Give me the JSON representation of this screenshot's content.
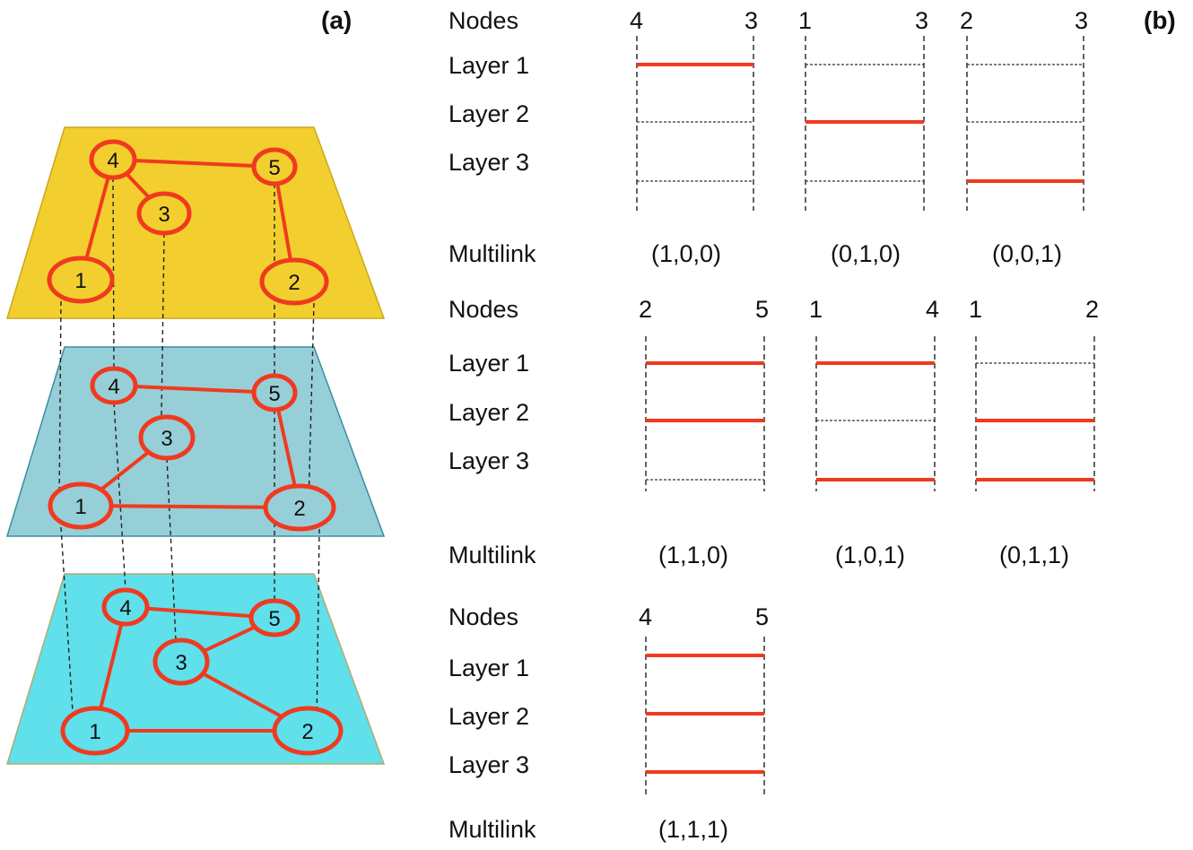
{
  "panel_a": {
    "label": "(a)",
    "layers": [
      {
        "fill": "#f2cf2e",
        "stroke": "#c9a91a"
      },
      {
        "fill": "#97cfd8",
        "stroke": "#3a8fa0"
      },
      {
        "fill": "#5fe0ea",
        "stroke": "#b7a96c"
      }
    ],
    "node_labels": [
      "1",
      "2",
      "3",
      "4",
      "5"
    ],
    "layer_edges": [
      [
        [
          "4",
          "5"
        ],
        [
          "4",
          "3"
        ],
        [
          "4",
          "1"
        ],
        [
          "5",
          "2"
        ]
      ],
      [
        [
          "4",
          "5"
        ],
        [
          "5",
          "2"
        ],
        [
          "1",
          "2"
        ],
        [
          "1",
          "3"
        ]
      ],
      [
        [
          "4",
          "5"
        ],
        [
          "4",
          "1"
        ],
        [
          "1",
          "2"
        ],
        [
          "3",
          "2"
        ],
        [
          "3",
          "5"
        ]
      ]
    ],
    "colors": {
      "edge": "#f03a1f",
      "node_fill_top": "#f2cf2e"
    }
  },
  "panel_b": {
    "label": "(b)",
    "nodes_label": "Nodes",
    "layer_labels": [
      "Layer 1",
      "Layer 2",
      "Layer 3"
    ],
    "multilink_label": "Multilink",
    "groups": [
      {
        "pairs": [
          {
            "nodes": [
              "4",
              "3"
            ],
            "vector": "(1,0,0)",
            "links": [
              1,
              0,
              0
            ]
          },
          {
            "nodes": [
              "1",
              "3"
            ],
            "vector": "(0,1,0)",
            "links": [
              0,
              1,
              0
            ]
          },
          {
            "nodes": [
              "2",
              "3"
            ],
            "vector": "(0,0,1)",
            "links": [
              0,
              0,
              1
            ]
          }
        ]
      },
      {
        "pairs": [
          {
            "nodes": [
              "2",
              "5"
            ],
            "vector": "(1,1,0)",
            "links": [
              1,
              1,
              0
            ]
          },
          {
            "nodes": [
              "1",
              "4"
            ],
            "vector": "(1,0,1)",
            "links": [
              1,
              0,
              1
            ]
          },
          {
            "nodes": [
              "1",
              "2"
            ],
            "vector": "(0,1,1)",
            "links": [
              0,
              1,
              1
            ]
          }
        ]
      },
      {
        "pairs": [
          {
            "nodes": [
              "4",
              "5"
            ],
            "vector": "(1,1,1)",
            "links": [
              1,
              1,
              1
            ]
          }
        ]
      }
    ]
  }
}
